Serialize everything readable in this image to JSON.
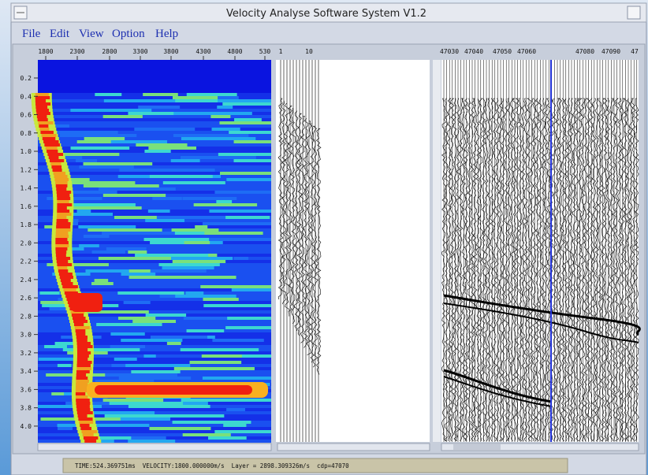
{
  "window": {
    "title": "Velocity Analyse Software System V1.2"
  },
  "menu": [
    "File",
    "Edit",
    "View",
    "Option",
    "Help"
  ],
  "semblance_panel": {
    "x_ticks": [
      "1800",
      "2300",
      "2800",
      "3300",
      "3800",
      "4300",
      "4800",
      "530"
    ],
    "y_ticks": [
      "0.2",
      "0.4",
      "0.6",
      "0.8",
      "1.0",
      "1.2",
      "1.4",
      "1.6",
      "1.8",
      "2.0",
      "2.2",
      "2.4",
      "2.6",
      "2.8",
      "3.0",
      "3.2",
      "3.4",
      "3.6",
      "3.8",
      "4.0"
    ]
  },
  "gather_panel": {
    "x_ticks": [
      "1",
      "10"
    ]
  },
  "cdp_panel": {
    "x_ticks": [
      "47030",
      "47040",
      "47050",
      "47060",
      "47080",
      "47090",
      "47"
    ]
  },
  "status_bar": "TIME:524.369751ms  VELOCITY:1800.000000m/s  Layer = 2898.309326m/s  cdp=47070"
}
